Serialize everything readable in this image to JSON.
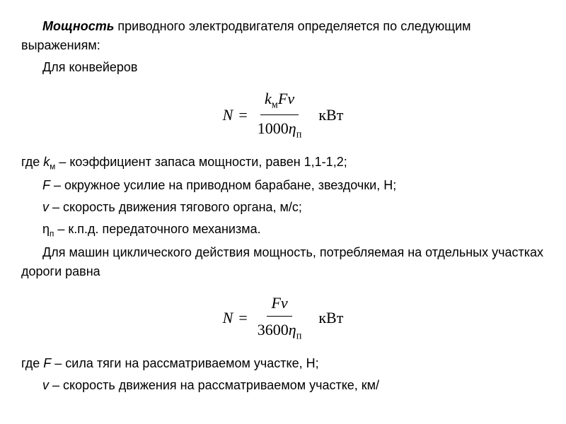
{
  "intro": {
    "bold": "Мощность",
    "rest": " приводного электродвигателя определяется по следующим выражениям:"
  },
  "conveyor_label": "Для конвейеров",
  "formula1": {
    "lhs": "N",
    "num_parts": {
      "k": "k",
      "ksub": "м",
      "F": "F",
      "nu": "ν"
    },
    "den_parts": {
      "num": "1000",
      "eta": "η",
      "etasub": "п"
    },
    "unit": "кВт"
  },
  "where": "где ",
  "defs1": {
    "k": "k",
    "ksub": "м",
    "ktext": " – коэффициент запаса мощности, равен 1,1-1,2;",
    "F": "F",
    "Ftext": " – окружное усилие на приводном барабане, звездочки, Н;",
    "v": "v",
    "vtext": " – скорость движения тягового органа, м/с;",
    "eta": "η",
    "etasub": "п",
    "etatext": " – к.п.д. передаточного механизма."
  },
  "cyclic_text": "Для машин циклического действия мощность, потребляемая на отдельных участках дороги равна",
  "formula2": {
    "lhs": "N",
    "num_parts": {
      "F": "F",
      "nu": "ν"
    },
    "den_parts": {
      "num": "3600",
      "eta": "η",
      "etasub": "п"
    },
    "unit": "кВт"
  },
  "defs2": {
    "F": "F",
    "Ftext": " – сила тяги на рассматриваемом участке, Н;",
    "v": "v",
    "vtext": " – скорость движения на рассматриваемом участке, км/"
  }
}
